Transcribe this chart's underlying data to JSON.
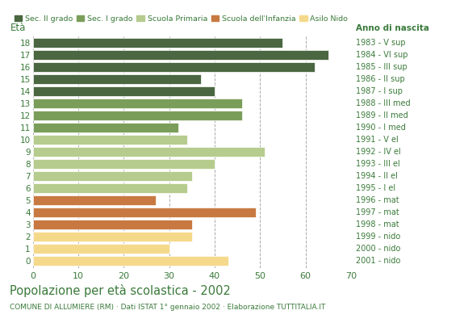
{
  "ages": [
    18,
    17,
    16,
    15,
    14,
    13,
    12,
    11,
    10,
    9,
    8,
    7,
    6,
    5,
    4,
    3,
    2,
    1,
    0
  ],
  "values": [
    55,
    65,
    62,
    37,
    40,
    46,
    46,
    32,
    34,
    51,
    40,
    35,
    34,
    27,
    49,
    35,
    35,
    30,
    43
  ],
  "right_labels_by_age": {
    "18": "1983 - V sup",
    "17": "1984 - VI sup",
    "16": "1985 - III sup",
    "15": "1986 - II sup",
    "14": "1987 - I sup",
    "13": "1988 - III med",
    "12": "1989 - II med",
    "11": "1990 - I med",
    "10": "1991 - V el",
    "9": "1992 - IV el",
    "8": "1993 - III el",
    "7": "1994 - II el",
    "6": "1995 - I el",
    "5": "1996 - mat",
    "4": "1997 - mat",
    "3": "1998 - mat",
    "2": "1999 - nido",
    "1": "2000 - nido",
    "0": "2001 - nido"
  },
  "bar_colors": [
    "#4a6741",
    "#4a6741",
    "#4a6741",
    "#4a6741",
    "#4a6741",
    "#7a9e5a",
    "#7a9e5a",
    "#7a9e5a",
    "#b5cc8e",
    "#b5cc8e",
    "#b5cc8e",
    "#b5cc8e",
    "#b5cc8e",
    "#c87941",
    "#c87941",
    "#c87941",
    "#f5d98b",
    "#f5d98b",
    "#f5d98b"
  ],
  "legend_labels": [
    "Sec. II grado",
    "Sec. I grado",
    "Scuola Primaria",
    "Scuola dell'Infanzia",
    "Asilo Nido"
  ],
  "legend_colors": [
    "#4a6741",
    "#7a9e5a",
    "#b5cc8e",
    "#c87941",
    "#f5d98b"
  ],
  "title": "Popolazione per età scolastica - 2002",
  "subtitle": "COMUNE DI ALLUMIERE (RM) · Dati ISTAT 1° gennaio 2002 · Elaborazione TUTTITALIA.IT",
  "label_eta": "Età",
  "label_anno": "Anno di nascita",
  "xlim": [
    0,
    70
  ],
  "xticks": [
    0,
    10,
    20,
    30,
    40,
    50,
    60,
    70
  ],
  "grid_color": "#aaaaaa",
  "background_color": "#ffffff",
  "title_color": "#3a7a3a",
  "subtitle_color": "#3a7a3a",
  "tick_color": "#3a7a3a",
  "bar_height": 0.82
}
